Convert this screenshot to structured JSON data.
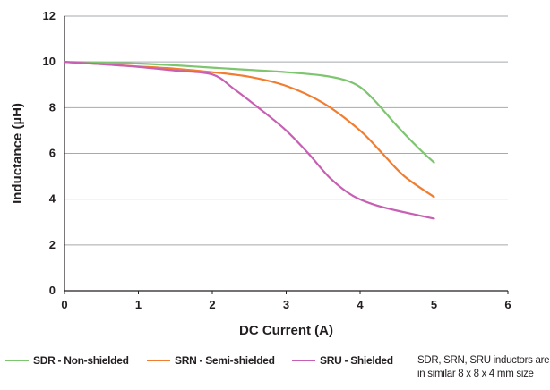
{
  "chart_data": {
    "type": "line",
    "xlabel": "DC Current (A)",
    "ylabel": "Inductance (µH)",
    "xlim": [
      0,
      6
    ],
    "ylim": [
      0,
      12
    ],
    "x_ticks": [
      "0",
      "1",
      "2",
      "3",
      "4",
      "5",
      "6"
    ],
    "y_ticks": [
      "0",
      "2",
      "4",
      "6",
      "8",
      "10",
      "12"
    ],
    "grid": "horizontal",
    "legend_position": "bottom",
    "note": "SDR, SRN, SRU inductors are in similar 8 x 8 x 4 mm size",
    "series": [
      {
        "name": "SDR - Non-shielded",
        "color": "#7dc56f",
        "x": [
          0,
          0.5,
          1,
          1.5,
          2,
          2.5,
          3,
          3.5,
          3.8,
          4.0,
          4.2,
          4.5,
          4.8,
          5.0
        ],
        "y": [
          10.0,
          9.97,
          9.93,
          9.85,
          9.75,
          9.65,
          9.55,
          9.4,
          9.2,
          8.9,
          8.3,
          7.2,
          6.2,
          5.6
        ]
      },
      {
        "name": "SRN - Semi-shielded",
        "color": "#f07d30",
        "x": [
          0,
          0.5,
          1,
          1.5,
          2,
          2.5,
          3,
          3.5,
          4.0,
          4.3,
          4.6,
          5.0
        ],
        "y": [
          10.0,
          9.9,
          9.8,
          9.7,
          9.55,
          9.35,
          8.95,
          8.2,
          7.0,
          6.0,
          5.0,
          4.1
        ]
      },
      {
        "name": "SRU - Shielded",
        "color": "#c75fb3",
        "x": [
          0,
          0.5,
          1,
          1.5,
          2,
          2.3,
          2.7,
          3.0,
          3.3,
          3.6,
          3.9,
          4.2,
          4.5,
          5.0
        ],
        "y": [
          10.0,
          9.9,
          9.78,
          9.62,
          9.45,
          8.8,
          7.8,
          7.0,
          6.0,
          4.9,
          4.15,
          3.75,
          3.5,
          3.15
        ]
      }
    ]
  }
}
